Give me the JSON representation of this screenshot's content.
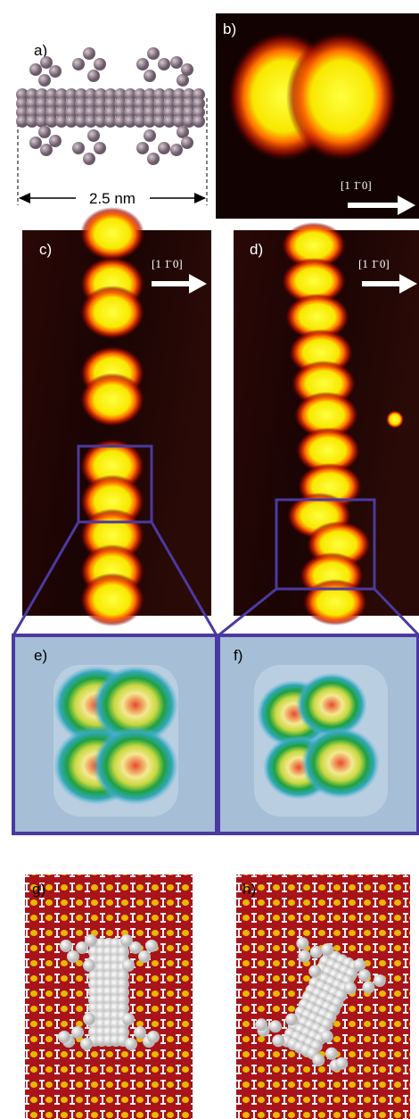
{
  "panels": {
    "a": {
      "label": "a)",
      "scale": "2.5 nm"
    },
    "b": {
      "label": "b)",
      "direction": "[1 1̄ 0]"
    },
    "c": {
      "label": "c)",
      "direction": "[1 1̄ 0]"
    },
    "d": {
      "label": "d)",
      "direction": "[1 1̄ 0]"
    },
    "e": {
      "label": "e)"
    },
    "f": {
      "label": "f)"
    },
    "g": {
      "label": "g)"
    },
    "h": {
      "label": "h)"
    }
  }
}
